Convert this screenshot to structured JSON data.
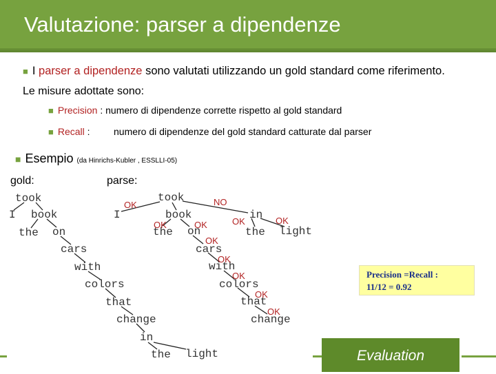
{
  "title": "Valutazione: parser a dipendenze",
  "intro": {
    "prefix": "I ",
    "highlight": "parser a dipendenze",
    "rest": " sono valutati utilizzando un gold standard come riferimento."
  },
  "measures_heading": "Le misure adottate sono:",
  "measures": [
    {
      "term": "Precision",
      "sep": " : ",
      "def": "numero di dipendenze corrette rispetto al gold standard"
    },
    {
      "term": "Recall",
      "sep": " :",
      "def": "numero di dipendenze del gold standard catturate dal parser"
    }
  ],
  "example": {
    "label": "Esempio",
    "source": "(da Hinrichs-Kubler , ESSLLI-05)"
  },
  "gold_label": "gold:",
  "parse_label": "parse:",
  "gold_words": [
    "took",
    "I",
    "book",
    "the",
    "on",
    "cars",
    "with",
    "colors",
    "that",
    "change",
    "in",
    "the",
    "light"
  ],
  "parse_words": [
    "took",
    "I",
    "book",
    "the",
    "on",
    "cars",
    "with",
    "colors",
    "that",
    "change",
    "in",
    "the",
    "light"
  ],
  "marks": [
    "OK",
    "NO",
    "OK",
    "OK",
    "OK",
    "OK",
    "OK",
    "OK",
    "OK",
    "OK",
    "OK"
  ],
  "result": {
    "line1": "Precision =Recall  :",
    "line2": "11/12 = 0.92"
  },
  "footer_label": "Evaluation",
  "colors": {
    "accent": "#77a23f",
    "mark": "#b22222",
    "result_text": "#1a2f8a",
    "result_bg": "#ffffa0"
  }
}
